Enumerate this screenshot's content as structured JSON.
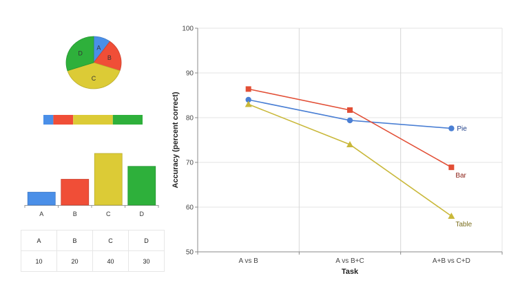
{
  "chart_data": [
    {
      "type": "pie",
      "categories": [
        "A",
        "B",
        "C",
        "D"
      ],
      "values": [
        10,
        20,
        40,
        30
      ],
      "colors": [
        "#4a8fe8",
        "#f04e37",
        "#dccb36",
        "#2eb03b"
      ]
    },
    {
      "type": "bar",
      "orientation": "stacked-horizontal",
      "categories": [
        "A",
        "B",
        "C",
        "D"
      ],
      "values": [
        10,
        20,
        40,
        30
      ],
      "colors": [
        "#4a8fe8",
        "#f04e37",
        "#dccb36",
        "#2eb03b"
      ]
    },
    {
      "type": "bar",
      "categories": [
        "A",
        "B",
        "C",
        "D"
      ],
      "values": [
        10,
        20,
        40,
        30
      ],
      "colors": [
        "#4a8fe8",
        "#f04e37",
        "#dccb36",
        "#2eb03b"
      ]
    },
    {
      "type": "table",
      "columns": [
        "A",
        "B",
        "C",
        "D"
      ],
      "rows": [
        [
          "10",
          "20",
          "40",
          "30"
        ]
      ]
    },
    {
      "type": "line",
      "categories": [
        "A vs B",
        "A vs B+C",
        "A+B vs C+D"
      ],
      "series": [
        {
          "name": "Pie",
          "values": [
            84,
            79.4,
            77.6
          ],
          "color": "#4a7fd4",
          "marker": "circle"
        },
        {
          "name": "Bar",
          "values": [
            86.4,
            81.7,
            68.9
          ],
          "color": "#e24e35",
          "marker": "square"
        },
        {
          "name": "Table",
          "values": [
            83,
            74,
            58
          ],
          "color": "#c9b83a",
          "marker": "triangle"
        }
      ],
      "xlabel": "Task",
      "ylabel": "Accuracy (percent correct)",
      "ylim": [
        50,
        100
      ],
      "yticks": [
        50,
        60,
        70,
        80,
        90,
        100
      ],
      "grid": true,
      "label_colors": {
        "Pie": "#1f3f8a",
        "Bar": "#8a1d12",
        "Table": "#7a6e1c"
      }
    }
  ]
}
